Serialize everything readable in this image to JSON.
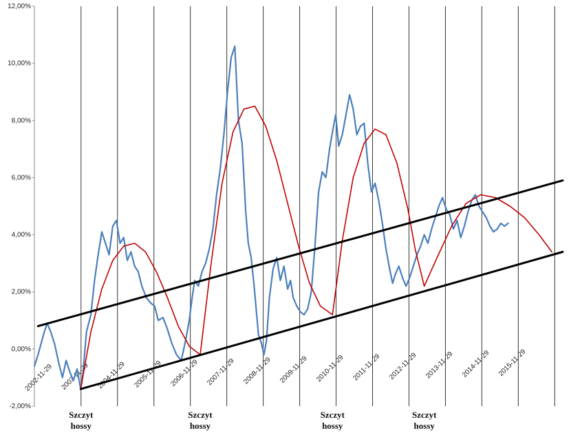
{
  "chart_data": {
    "type": "line",
    "title": "",
    "xlabel": "",
    "ylabel": "",
    "ylim": [
      -2,
      12
    ],
    "yticks": [
      "-2,00%",
      "0,00%",
      "2,00%",
      "4,00%",
      "6,00%",
      "8,00%",
      "10,00%",
      "12,00%"
    ],
    "x_tick_labels": [
      "2002-11-29",
      "2003-11-29",
      "2004-11-29",
      "2005-11-29",
      "2006-11-29",
      "2007-11-29",
      "2008-11-29",
      "2009-11-29",
      "2010-11-29",
      "2011-11-29",
      "2012-11-29",
      "2013-11-29",
      "2014-11-29",
      "2015-11-29"
    ],
    "x_range": [
      2002.75,
      2017.25
    ],
    "gridlines": "vertical lines at annual marks, none horizontal",
    "peak_labels": [
      {
        "x": 2004.03,
        "line1": "Szczyt",
        "line2": "hossy"
      },
      {
        "x": 2007.3,
        "line1": "Szczyt",
        "line2": "hossy"
      },
      {
        "x": 2010.93,
        "line1": "Szczyt",
        "line2": "hossy"
      },
      {
        "x": 2013.45,
        "line1": "Szczyt",
        "line2": "hossy"
      }
    ],
    "series": [
      {
        "color": "#4a7ebb",
        "x": [
          2002.75,
          2002.85,
          2003.0,
          2003.1,
          2003.2,
          2003.3,
          2003.42,
          2003.52,
          2003.62,
          2003.72,
          2003.82,
          2003.92,
          2004.02,
          2004.08,
          2004.18,
          2004.3,
          2004.4,
          2004.5,
          2004.6,
          2004.7,
          2004.8,
          2004.9,
          2005.0,
          2005.1,
          2005.2,
          2005.3,
          2005.4,
          2005.5,
          2005.6,
          2005.7,
          2005.82,
          2005.95,
          2006.05,
          2006.15,
          2006.28,
          2006.4,
          2006.52,
          2006.65,
          2006.78,
          2006.9,
          2007.0,
          2007.08,
          2007.15,
          2007.25,
          2007.35,
          2007.45,
          2007.55,
          2007.65,
          2007.75,
          2007.85,
          2007.95,
          2008.05,
          2008.15,
          2008.25,
          2008.35,
          2008.45,
          2008.55,
          2008.62,
          2008.7,
          2008.78,
          2008.85,
          2008.9,
          2008.98,
          2009.05,
          2009.12,
          2009.2,
          2009.3,
          2009.4,
          2009.5,
          2009.6,
          2009.7,
          2009.78,
          2009.85,
          2009.95,
          2010.05,
          2010.15,
          2010.25,
          2010.35,
          2010.45,
          2010.55,
          2010.65,
          2010.75,
          2010.85,
          2010.93,
          2011.02,
          2011.1,
          2011.2,
          2011.3,
          2011.4,
          2011.5,
          2011.6,
          2011.7,
          2011.8,
          2011.9,
          2012.0,
          2012.1,
          2012.2,
          2012.3,
          2012.4,
          2012.5,
          2012.58,
          2012.65,
          2012.75,
          2012.85,
          2012.95,
          2013.05,
          2013.15,
          2013.25,
          2013.35,
          2013.45,
          2013.55,
          2013.65,
          2013.75,
          2013.85,
          2013.95,
          2014.05,
          2014.15,
          2014.25,
          2014.35,
          2014.45,
          2014.55,
          2014.65,
          2014.75,
          2014.85,
          2014.95,
          2015.05,
          2015.15,
          2015.25,
          2015.35,
          2015.45,
          2015.55,
          2015.65,
          2015.75
        ],
        "y": [
          -0.6,
          -0.2,
          0.5,
          0.9,
          0.6,
          0.2,
          -0.5,
          -1.0,
          -0.4,
          -0.8,
          -1.1,
          -0.7,
          -1.4,
          -0.9,
          0.6,
          1.2,
          2.4,
          3.3,
          4.1,
          3.7,
          3.3,
          4.3,
          4.5,
          3.7,
          3.9,
          3.1,
          3.4,
          2.9,
          2.7,
          2.2,
          1.8,
          1.6,
          1.5,
          1.0,
          1.1,
          0.7,
          0.2,
          -0.2,
          -0.4,
          0.3,
          1.0,
          1.8,
          2.4,
          2.2,
          2.7,
          3.0,
          3.5,
          4.2,
          5.4,
          6.3,
          7.5,
          9.0,
          10.2,
          10.6,
          8.0,
          7.2,
          4.8,
          3.7,
          3.2,
          2.2,
          1.2,
          0.5,
          0.2,
          -0.2,
          0.3,
          1.8,
          2.8,
          3.2,
          2.4,
          2.9,
          2.1,
          2.4,
          1.8,
          1.5,
          1.3,
          1.2,
          1.4,
          2.0,
          3.6,
          5.5,
          6.2,
          6.0,
          7.0,
          7.6,
          8.2,
          7.1,
          7.5,
          8.2,
          8.9,
          8.4,
          7.5,
          7.8,
          7.9,
          6.5,
          5.5,
          5.8,
          5.2,
          4.4,
          3.5,
          2.8,
          2.3,
          2.6,
          2.9,
          2.5,
          2.2,
          2.5,
          2.9,
          3.3,
          3.6,
          4.0,
          3.7,
          4.2,
          4.6,
          5.0,
          5.3,
          4.9,
          4.7,
          4.2,
          4.5,
          3.9,
          4.3,
          4.8,
          5.2,
          5.4,
          5.0,
          4.8,
          4.6,
          4.3,
          4.1,
          4.2,
          4.4,
          4.3,
          4.4
        ]
      },
      {
        "color": "#c00000",
        "x": [
          2004.02,
          2004.3,
          2004.6,
          2004.9,
          2005.2,
          2005.5,
          2005.8,
          2006.1,
          2006.4,
          2006.7,
          2007.0,
          2007.3
        ],
        "y": [
          -1.4,
          0.6,
          2.1,
          3.1,
          3.6,
          3.7,
          3.4,
          2.7,
          1.8,
          0.8,
          0.1,
          -0.2
        ]
      },
      {
        "color": "#c00000",
        "x": [
          2007.3,
          2007.6,
          2007.9,
          2008.2,
          2008.5,
          2008.8,
          2009.1,
          2009.4,
          2009.7,
          2010.0,
          2010.3,
          2010.6,
          2010.93
        ],
        "y": [
          -0.2,
          3.0,
          5.8,
          7.6,
          8.4,
          8.5,
          7.8,
          6.6,
          5.1,
          3.6,
          2.3,
          1.5,
          1.2
        ]
      },
      {
        "color": "#c00000",
        "x": [
          2010.93,
          2011.2,
          2011.5,
          2011.8,
          2012.1,
          2012.4,
          2012.7,
          2013.0,
          2013.2,
          2013.45
        ],
        "y": [
          1.2,
          3.8,
          6.0,
          7.2,
          7.7,
          7.5,
          6.5,
          4.9,
          3.5,
          2.2
        ]
      },
      {
        "color": "#c00000",
        "x": [
          2013.45,
          2013.8,
          2014.2,
          2014.6,
          2015.0,
          2015.4,
          2015.8,
          2016.2,
          2016.6,
          2016.95
        ],
        "y": [
          2.2,
          3.2,
          4.3,
          5.1,
          5.4,
          5.3,
          5.0,
          4.6,
          4.0,
          3.4
        ]
      },
      {
        "color": "#000000",
        "x": [
          2002.85,
          2017.25
        ],
        "y": [
          0.8,
          5.9
        ]
      },
      {
        "color": "#000000",
        "x": [
          2004.02,
          2017.25
        ],
        "y": [
          -1.4,
          3.4
        ]
      }
    ]
  }
}
